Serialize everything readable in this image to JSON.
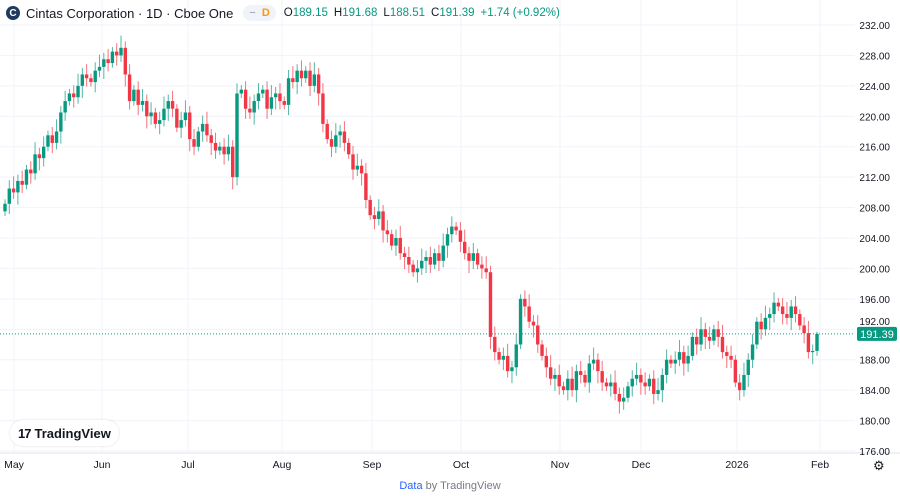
{
  "header": {
    "symbol_icon_letter": "C",
    "title": "Cintas Corporation · 1D · Cboe One",
    "pill_dash": "−",
    "pill_letter": "D",
    "open_label": "O",
    "open": "189.15",
    "high_label": "H",
    "high": "191.68",
    "low_label": "L",
    "low": "188.51",
    "close_label": "C",
    "close": "191.39",
    "change": "+1.74 (+0.92%)"
  },
  "colors": {
    "up": "#089981",
    "down": "#f23645",
    "grid": "#f0f3fa",
    "last_price_bg": "#089981"
  },
  "chart_data": {
    "type": "candlestick",
    "interval": "1D",
    "y_ticks": [
      232,
      228,
      224,
      220,
      216,
      212,
      208,
      204,
      200,
      196,
      192,
      188,
      184,
      180,
      176
    ],
    "ylim": [
      176,
      232
    ],
    "x_ticks": [
      "May",
      "Jun",
      "Jul",
      "Aug",
      "Sep",
      "Oct",
      "Nov",
      "Dec",
      "2026",
      "Feb"
    ],
    "last_price": "191.39",
    "first_open": 207.5,
    "closes": [
      208.5,
      210.5,
      210,
      211.5,
      211,
      213,
      212.5,
      215,
      214.5,
      216,
      217.5,
      216.5,
      218,
      220.5,
      222,
      223,
      222.5,
      224,
      225.5,
      225,
      224.5,
      226,
      226.5,
      227.5,
      227,
      228.5,
      228,
      229,
      225.5,
      222,
      223.5,
      221.5,
      222,
      220,
      220.5,
      219,
      219.5,
      221,
      222,
      221,
      218.5,
      219.5,
      220.5,
      217,
      216,
      218,
      219,
      217.5,
      216.5,
      215.5,
      216,
      215,
      216,
      212,
      223,
      223.5,
      221,
      220.5,
      222,
      223,
      223.5,
      221,
      222.5,
      223,
      222,
      221.5,
      225,
      224.5,
      226,
      225,
      226,
      224,
      225.5,
      223,
      219,
      217,
      216,
      217.5,
      218,
      216.5,
      215,
      213,
      213.5,
      212.5,
      209,
      207,
      206.5,
      207.5,
      205,
      204.5,
      203,
      204,
      202,
      201.5,
      200.5,
      199.5,
      200,
      201,
      201.5,
      200.5,
      202,
      201,
      203,
      204.5,
      205.5,
      205,
      203.5,
      202,
      201,
      202,
      200.5,
      200,
      199.5,
      191,
      189,
      188,
      188.5,
      186.5,
      187,
      190,
      196,
      195,
      193,
      192.5,
      190,
      188.5,
      187,
      185.5,
      186,
      184.5,
      184,
      185.5,
      184,
      186.5,
      186,
      185,
      187.5,
      188,
      186.5,
      185,
      184.5,
      185,
      183.5,
      182.5,
      183,
      184.5,
      185.5,
      186,
      185,
      184.5,
      185.5,
      183.5,
      184,
      186,
      188,
      187.5,
      188,
      189,
      187.5,
      188.5,
      191,
      190,
      192,
      191,
      190.5,
      192,
      191,
      189,
      188.5,
      188,
      185,
      184,
      186,
      188,
      190,
      193,
      192,
      193.5,
      194,
      195.5,
      195,
      194,
      193.5,
      195,
      194,
      192.5,
      191.5,
      189,
      189.15,
      191.39
    ]
  },
  "watermark": {
    "mark": "17",
    "text": "TradingView"
  },
  "footer": {
    "link": "Data",
    "text": "by TradingView"
  },
  "settings_icon": "gear-icon"
}
